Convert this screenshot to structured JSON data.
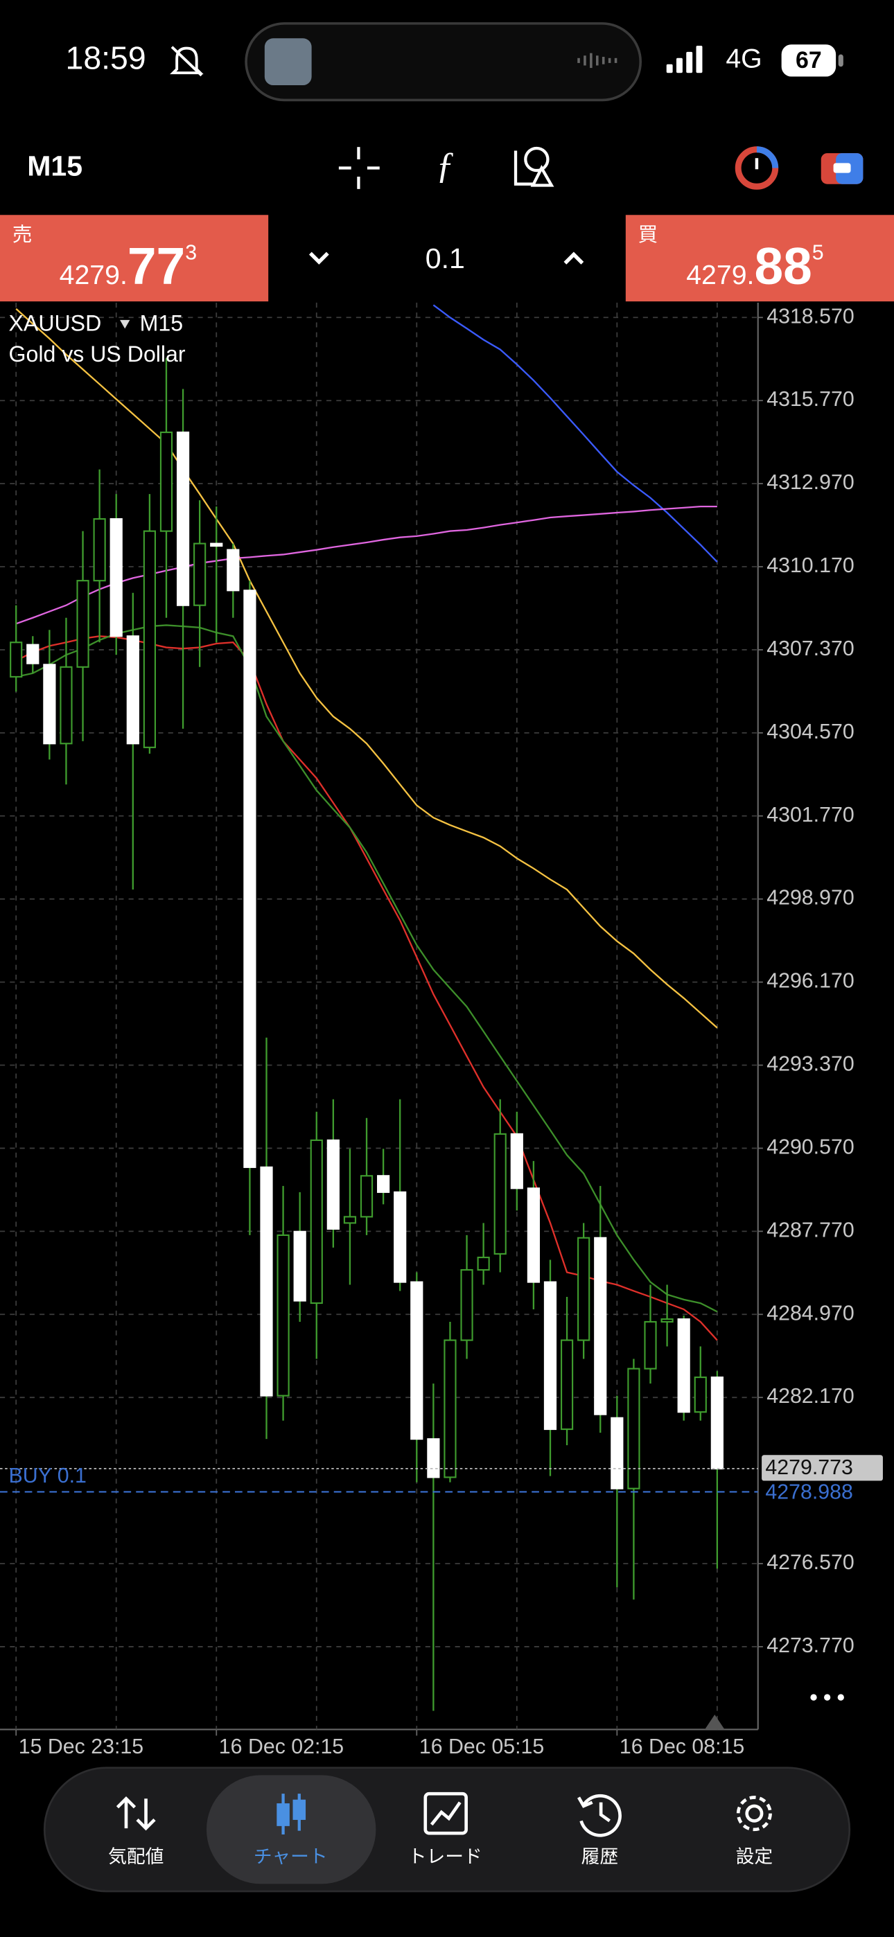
{
  "status_bar": {
    "time": "18:59",
    "network": "4G",
    "battery": "67"
  },
  "toolbar": {
    "timeframe": "M15"
  },
  "trade_panel": {
    "sell": {
      "label": "売",
      "price_head": "4279.",
      "price_big": "77",
      "price_tail": "3"
    },
    "lot": "0.1",
    "buy": {
      "label": "買",
      "price_head": "4279.",
      "price_big": "88",
      "price_tail": "5"
    }
  },
  "chart_data": {
    "type": "candlestick",
    "symbol": "XAUUSD",
    "timeframe": "M15",
    "description": "Gold vs US Dollar",
    "categories": [
      "15 Dec 23:15",
      null,
      null,
      null,
      null,
      null,
      null,
      null,
      null,
      null,
      null,
      null,
      "16 Dec 02:15",
      null,
      null,
      null,
      null,
      null,
      null,
      null,
      null,
      null,
      null,
      null,
      "16 Dec 05:15",
      null,
      null,
      null,
      null,
      null,
      null,
      null,
      null,
      null,
      null,
      null,
      "16 Dec 08:15",
      null,
      null,
      null,
      null,
      null,
      null
    ],
    "open": [
      4306.46,
      4307.54,
      4306.87,
      4304.21,
      4306.79,
      4309.7,
      4311.78,
      4307.83,
      4304.08,
      4311.37,
      4314.7,
      4308.87,
      4310.95,
      4310.74,
      4309.37,
      4289.93,
      4282.23,
      4287.76,
      4285.35,
      4290.84,
      4288.05,
      4288.26,
      4289.64,
      4289.09,
      4286.06,
      4280.77,
      4279.48,
      4284.1,
      4286.47,
      4287.01,
      4291.05,
      4289.22,
      4286.06,
      4281.1,
      4284.1,
      4287.55,
      4281.48,
      4279.1,
      4283.14,
      4284.72,
      4284.81,
      4281.68,
      4282.85
    ],
    "high": [
      4308.87,
      4307.83,
      4308.04,
      4308.45,
      4311.37,
      4313.45,
      4312.62,
      4309.29,
      4312.62,
      4317.2,
      4316.16,
      4312.41,
      4312.2,
      4310.95,
      4309.7,
      4294.3,
      4289.3,
      4289.09,
      4291.8,
      4292.22,
      4290.55,
      4291.59,
      4290.55,
      4292.22,
      4286.39,
      4282.64,
      4284.72,
      4287.64,
      4288.05,
      4292.22,
      4291.8,
      4290.14,
      4286.81,
      4285.56,
      4288.05,
      4289.3,
      4282.23,
      4283.47,
      4285.97,
      4285.97,
      4284.93,
      4283.89,
      4283.06
    ],
    "low": [
      4305.96,
      4306.58,
      4303.67,
      4302.83,
      4304.29,
      4307.62,
      4307.2,
      4299.29,
      4303.87,
      4308.45,
      4304.71,
      4306.79,
      4307.62,
      4308.45,
      4287.64,
      4280.77,
      4281.39,
      4284.72,
      4283.47,
      4287.22,
      4285.97,
      4287.64,
      4288.68,
      4285.76,
      4279.31,
      4271.61,
      4279.31,
      4283.47,
      4285.97,
      4286.39,
      4288.47,
      4285.14,
      4279.52,
      4280.56,
      4283.47,
      4280.98,
      4275.77,
      4275.36,
      4282.64,
      4283.89,
      4281.39,
      4281.39,
      4276.4
    ],
    "close": [
      4307.62,
      4306.91,
      4304.21,
      4306.79,
      4309.7,
      4311.78,
      4307.83,
      4304.21,
      4311.37,
      4314.7,
      4308.87,
      4310.95,
      4310.87,
      4309.37,
      4289.93,
      4282.23,
      4287.64,
      4285.43,
      4290.84,
      4287.85,
      4288.26,
      4289.64,
      4289.09,
      4286.06,
      4280.77,
      4279.48,
      4284.1,
      4286.47,
      4286.89,
      4291.05,
      4289.22,
      4286.06,
      4281.1,
      4284.1,
      4287.55,
      4281.6,
      4279.1,
      4283.14,
      4284.72,
      4284.81,
      4281.68,
      4282.85,
      4279.77
    ],
    "up_color": "#000000",
    "down_color": "#ffffff",
    "wick_color": "#3f9c2e",
    "lines": [
      {
        "color": "#f5c242",
        "values": [
          4318.86,
          4318.36,
          4317.86,
          4317.32,
          4316.82,
          4316.32,
          4315.82,
          4315.32,
          4314.82,
          4314.32,
          4313.45,
          4312.62,
          4311.78,
          4310.95,
          4309.7,
          4308.66,
          4307.62,
          4306.58,
          4305.75,
          4305.12,
          4304.71,
          4304.21,
          4303.54,
          4302.83,
          4302.13,
          4301.71,
          4301.46,
          4301.25,
          4301.04,
          4300.75,
          4300.34,
          4300.0,
          4299.63,
          4299.29,
          4298.67,
          4298.05,
          4297.55,
          4297.13,
          4296.59,
          4296.09,
          4295.63,
          4295.13,
          4294.63
        ]
      },
      {
        "color": "#3b5bff",
        "values": [
          null,
          null,
          null,
          null,
          null,
          null,
          null,
          null,
          null,
          null,
          null,
          null,
          null,
          null,
          null,
          null,
          null,
          null,
          null,
          null,
          null,
          null,
          null,
          null,
          null,
          4318.99,
          4318.57,
          4318.2,
          4317.82,
          4317.49,
          4316.99,
          4316.45,
          4315.86,
          4315.24,
          4314.62,
          4313.99,
          4313.37,
          4312.91,
          4312.49,
          4311.99,
          4311.45,
          4310.91,
          4310.33
        ]
      },
      {
        "color": "#e066e0",
        "values": [
          4308.25,
          4308.45,
          4308.66,
          4308.87,
          4309.16,
          4309.41,
          4309.62,
          4309.79,
          4309.91,
          4310.04,
          4310.16,
          4310.29,
          4310.37,
          4310.45,
          4310.49,
          4310.54,
          4310.58,
          4310.66,
          4310.74,
          4310.83,
          4310.91,
          4310.99,
          4311.08,
          4311.16,
          4311.2,
          4311.28,
          4311.37,
          4311.41,
          4311.49,
          4311.58,
          4311.66,
          4311.74,
          4311.83,
          4311.87,
          4311.91,
          4311.95,
          4311.99,
          4312.03,
          4312.08,
          4312.12,
          4312.16,
          4312.2,
          4312.2
        ]
      },
      {
        "color": "#e0302a",
        "values": [
          4307.0,
          4307.29,
          4307.5,
          4307.62,
          4307.75,
          4307.83,
          4307.79,
          4307.7,
          4307.58,
          4307.45,
          4307.41,
          4307.45,
          4307.58,
          4307.62,
          4307.0,
          4305.54,
          4304.29,
          4303.67,
          4303.04,
          4302.21,
          4301.38,
          4300.34,
          4299.29,
          4298.25,
          4297.01,
          4295.76,
          4294.72,
          4293.67,
          4292.63,
          4291.8,
          4290.97,
          4289.51,
          4288.05,
          4286.39,
          4286.26,
          4286.1,
          4285.97,
          4285.76,
          4285.56,
          4285.35,
          4285.14,
          4284.72,
          4284.1
        ]
      },
      {
        "color": "#3d8f2a",
        "values": [
          4306.46,
          4306.58,
          4306.87,
          4307.2,
          4307.41,
          4307.7,
          4307.91,
          4308.04,
          4308.16,
          4308.2,
          4308.16,
          4308.12,
          4307.95,
          4307.83,
          4306.79,
          4305.12,
          4304.29,
          4303.46,
          4302.63,
          4302.0,
          4301.38,
          4300.54,
          4299.5,
          4298.46,
          4297.42,
          4296.59,
          4295.96,
          4295.34,
          4294.51,
          4293.67,
          4292.84,
          4292.01,
          4291.18,
          4290.34,
          4289.72,
          4288.68,
          4287.64,
          4286.81,
          4286.06,
          4285.64,
          4285.47,
          4285.35,
          4285.06
        ]
      }
    ],
    "bid": 4279.773,
    "position": {
      "label": "BUY 0.1",
      "price": 4278.988
    },
    "ylim": [
      4270.98,
      4319.07
    ],
    "yticks": [
      {
        "value": 4318.57,
        "label": "4318.570"
      },
      {
        "value": 4315.77,
        "label": "4315.770"
      },
      {
        "value": 4312.97,
        "label": "4312.970"
      },
      {
        "value": 4310.17,
        "label": "4310.170"
      },
      {
        "value": 4307.37,
        "label": "4307.370"
      },
      {
        "value": 4304.57,
        "label": "4304.570"
      },
      {
        "value": 4301.77,
        "label": "4301.770"
      },
      {
        "value": 4298.97,
        "label": "4298.970"
      },
      {
        "value": 4296.17,
        "label": "4296.170"
      },
      {
        "value": 4293.37,
        "label": "4293.370"
      },
      {
        "value": 4290.57,
        "label": "4290.570"
      },
      {
        "value": 4287.77,
        "label": "4287.770"
      },
      {
        "value": 4284.97,
        "label": "4284.970"
      },
      {
        "value": 4282.17,
        "label": "4282.170"
      },
      {
        "value": 4276.57,
        "label": "4276.570"
      },
      {
        "value": 4273.77,
        "label": "4273.770"
      }
    ],
    "grid": true
  },
  "tab_bar": {
    "tabs": [
      "気配値",
      "チャート",
      "トレード",
      "履歴",
      "設定"
    ],
    "selected": 1
  }
}
